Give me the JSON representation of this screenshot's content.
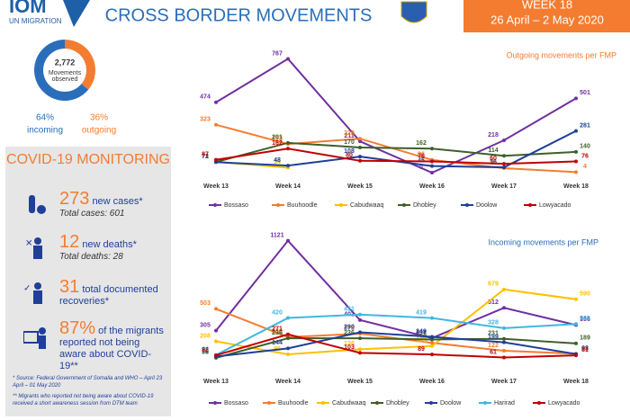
{
  "header": {
    "logo": "IOM",
    "logo_sub": "UN MIGRATION",
    "title": "CROSS BORDER MOVEMENTS",
    "week": "WEEK 18",
    "dates": "26 April – 2 May 2020"
  },
  "summary": {
    "total": "2,772",
    "total_label": "Movements observed"
  },
  "covid": {
    "title": "COVID-19 MONITORING",
    "items": [
      {
        "number": "273",
        "text": "new cases*",
        "sub": "Total cases: 601"
      },
      {
        "number": "12",
        "text": "new deaths*",
        "sub": "Total deaths: 28"
      },
      {
        "number": "31",
        "text": "total documented recoveries*"
      },
      {
        "number": "87%",
        "text": "of the migrants reported not being aware about COVID-19**"
      }
    ],
    "notes": [
      "* Source: Federal Government of Somalia and WHO – April 23 April – 01 May 2020",
      "** Migrants who reported not being aware about COVID-19 received a short awareness session from DTM team"
    ]
  },
  "chart_data": [
    {
      "type": "pie",
      "categories": [
        "incoming",
        "outgoing"
      ],
      "values": [
        64,
        36
      ],
      "value_labels": [
        "64%",
        "36%"
      ],
      "colors": [
        "#2a6ebb",
        "#f47c30"
      ]
    },
    {
      "type": "line",
      "title": "Outgoing movements per FMP",
      "title_color": "#f47c30",
      "categories": [
        "Week 13",
        "Week 14",
        "Week 15",
        "Week 16",
        "Week 17",
        "Week 18"
      ],
      "ylim": [
        0,
        800
      ],
      "series": [
        {
          "name": "Bossaso",
          "color": "#7030a0",
          "values": [
            474,
            767,
            211,
            0,
            218,
            501
          ]
        },
        {
          "name": "Buuhoodle",
          "color": "#f47c30",
          "values": [
            323,
            193,
            229,
            86,
            30,
            4
          ]
        },
        {
          "name": "Cabudwaaq",
          "color": "#ffc000",
          "values": [
            73,
            34,
            null,
            null,
            null,
            null
          ]
        },
        {
          "name": "Dhobley",
          "color": "#3e5f2a",
          "values": [
            72,
            201,
            170,
            162,
            114,
            140
          ]
        },
        {
          "name": "Doolow",
          "color": "#1f3f99",
          "values": [
            71,
            48,
            108,
            45,
            36,
            281
          ]
        },
        {
          "name": "Lowyacado",
          "color": "#c00000",
          "values": [
            87,
            162,
            80,
            76,
            60,
            76
          ]
        }
      ]
    },
    {
      "type": "line",
      "title": "Incoming movements per FMP",
      "title_color": "#2a6ebb",
      "categories": [
        "Week 13",
        "Week 14",
        "Week 15",
        "Week 16",
        "Week 17",
        "Week 18"
      ],
      "ylim": [
        0,
        1200
      ],
      "series": [
        {
          "name": "Bossaso",
          "color": "#7030a0",
          "values": [
            305,
            1121,
            401,
            237,
            512,
            356
          ]
        },
        {
          "name": "Buuhoodle",
          "color": "#f47c30",
          "values": [
            503,
            246,
            278,
            194,
            122,
            96
          ]
        },
        {
          "name": "Cabudwaaq",
          "color": "#ffc000",
          "values": [
            208,
            90,
            136,
            165,
            679,
            590
          ]
        },
        {
          "name": "Dhobley",
          "color": "#3e5f2a",
          "values": [
            58,
            236,
            236,
            225,
            231,
            189
          ]
        },
        {
          "name": "Doolow",
          "color": "#1f3f99",
          "values": [
            70,
            144,
            290,
            249,
            199,
            93
          ]
        },
        {
          "name": "Harirad",
          "color": "#3fb8e0",
          "values": [
            84,
            420,
            451,
            419,
            328,
            365
          ]
        },
        {
          "name": "Lowyacado",
          "color": "#c00000",
          "values": [
            82,
            271,
            103,
            89,
            61,
            81
          ]
        }
      ]
    }
  ]
}
